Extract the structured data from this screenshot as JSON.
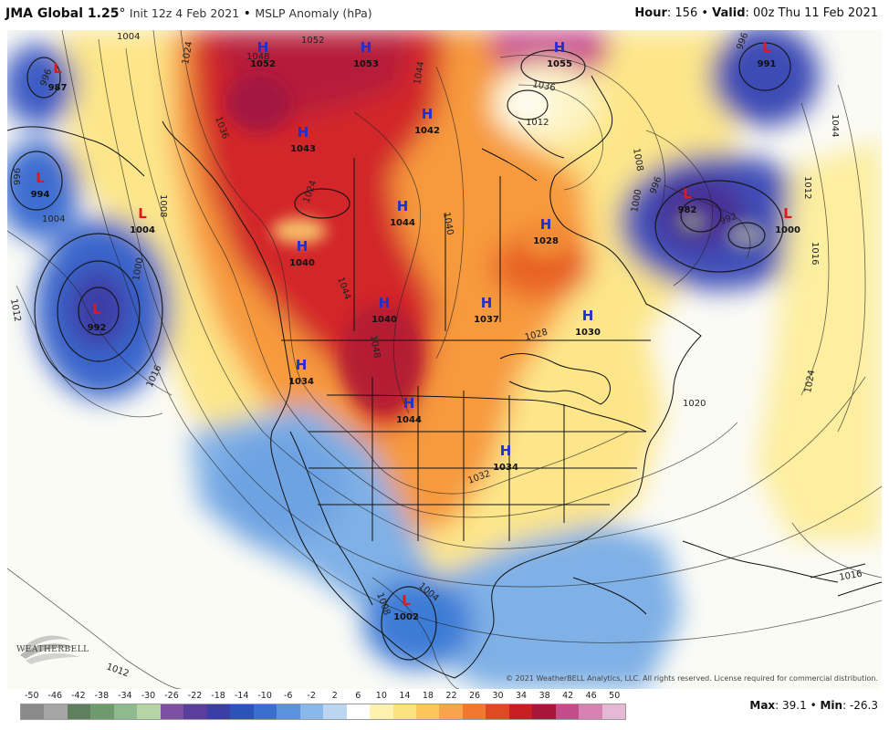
{
  "header": {
    "model": "JMA Global 1.25",
    "degree": "°",
    "init": "Init 12z 4 Feb 2021",
    "separator": "•",
    "product": "MSLP Anomaly (hPa)",
    "hour_label": "Hour",
    "hour_value": ": 156",
    "valid_label": "Valid",
    "valid_value": ": 00z Thu 11 Feb 2021"
  },
  "colorbar": {
    "ticks": [
      "-50",
      "-46",
      "-42",
      "-38",
      "-34",
      "-30",
      "-26",
      "-22",
      "-18",
      "-14",
      "-10",
      "-6",
      "-2",
      "2",
      "6",
      "10",
      "14",
      "18",
      "22",
      "26",
      "30",
      "34",
      "38",
      "42",
      "46",
      "50"
    ],
    "colors": [
      "#8a8a8a",
      "#a6a6a6",
      "#5f7f5f",
      "#6e9a6e",
      "#8fb98f",
      "#b6d5a6",
      "#7d4fa3",
      "#5a3e9c",
      "#3b3fa5",
      "#2d52b8",
      "#3a6fd0",
      "#5b93de",
      "#8ab8ea",
      "#bcd6f2",
      "#ffffff",
      "#fdf2b0",
      "#fce27f",
      "#fbc75a",
      "#f7a44a",
      "#f0792f",
      "#e04a22",
      "#c81e24",
      "#a8163a",
      "#c44c8a",
      "#d782b3",
      "#e6b8d3"
    ]
  },
  "stats": {
    "max_label": "Max",
    "max_value": ": 39.1",
    "sep": "•",
    "min_label": "Min",
    "min_value": ": -26.3"
  },
  "copyright": "© 2021 WeatherBELL Analytics, LLC. All rights reserved. License required for commercial distribution.",
  "logo_text": "WEATHERBELL",
  "centers": [
    {
      "type": "H",
      "value": "1052"
    },
    {
      "type": "H",
      "value": "1053"
    },
    {
      "type": "H",
      "value": "1055"
    },
    {
      "type": "L",
      "value": "991"
    },
    {
      "type": "L",
      "value": "987"
    },
    {
      "type": "H",
      "value": "1042"
    },
    {
      "type": "H",
      "value": "1043"
    },
    {
      "type": "L",
      "value": "994"
    },
    {
      "type": "L",
      "value": "1004"
    },
    {
      "type": "H",
      "value": "1044"
    },
    {
      "type": "H",
      "value": "1028"
    },
    {
      "type": "L",
      "value": "982"
    },
    {
      "type": "L",
      "value": "1000"
    },
    {
      "type": "H",
      "value": "1040"
    },
    {
      "type": "L",
      "value": "992"
    },
    {
      "type": "H",
      "value": "1040"
    },
    {
      "type": "H",
      "value": "1037"
    },
    {
      "type": "H",
      "value": "1030"
    },
    {
      "type": "H",
      "value": "1034"
    },
    {
      "type": "H",
      "value": "1044"
    },
    {
      "type": "H",
      "value": "1034"
    },
    {
      "type": "L",
      "value": "1002"
    }
  ],
  "isobars": [
    "1004",
    "1052",
    "1048",
    "1024",
    "1036",
    "1044",
    "1012",
    "1008",
    "1004",
    "1000",
    "996",
    "1024",
    "1040",
    "1044",
    "1048",
    "1028",
    "1012",
    "1016",
    "1020",
    "1024",
    "1032",
    "1004",
    "1008",
    "1012",
    "1016",
    "992",
    "996",
    "1016",
    "1012",
    "1008",
    "1000",
    "996",
    "996",
    "1044",
    "1036"
  ]
}
